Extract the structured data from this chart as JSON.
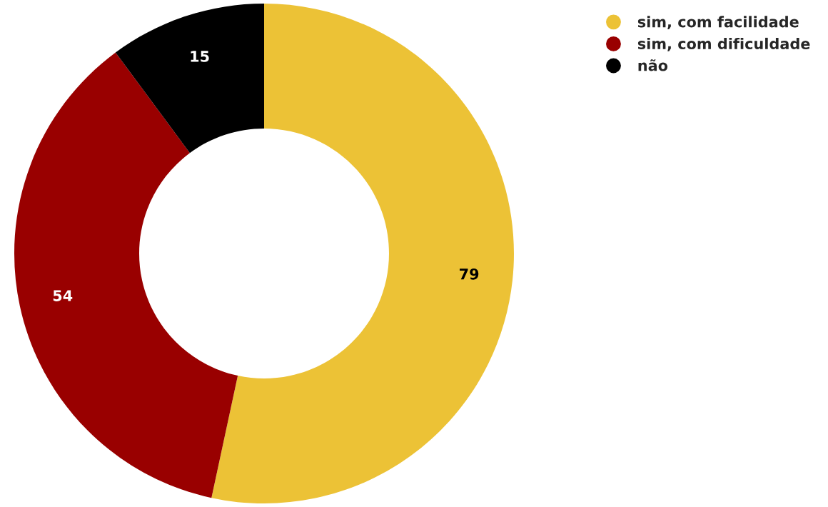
{
  "chart_data": {
    "type": "donut",
    "categories": [
      "sim, com facilidade",
      "sim, com dificuldade",
      "não"
    ],
    "values": [
      79,
      54,
      15
    ],
    "colors": [
      "#ecc236",
      "#990000",
      "#000000"
    ],
    "data_labels": true,
    "legend": "top right"
  }
}
